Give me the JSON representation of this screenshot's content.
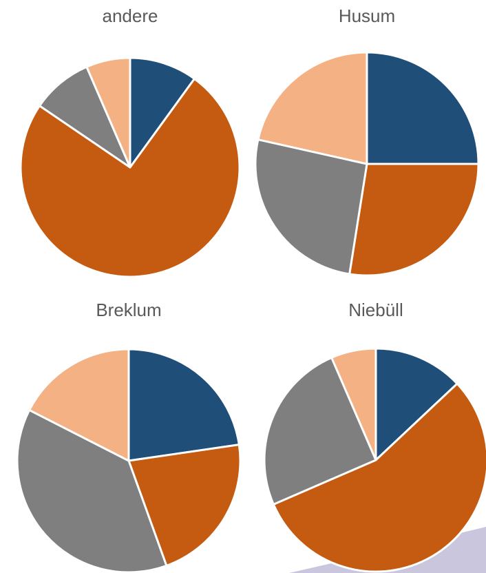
{
  "chart_data": [
    {
      "type": "pie",
      "title": "andere",
      "categories": [
        null,
        null,
        null,
        null
      ],
      "values": [
        10,
        74.5,
        9,
        6.5
      ],
      "colors": [
        "#1f4e79",
        "#c55a11",
        "#7f7f7f",
        "#f4b183"
      ]
    },
    {
      "type": "pie",
      "title": "Husum",
      "categories": [
        null,
        null,
        null,
        null
      ],
      "values": [
        25,
        27.5,
        26,
        21.5
      ],
      "colors": [
        "#1f4e79",
        "#c55a11",
        "#7f7f7f",
        "#f4b183"
      ]
    },
    {
      "type": "pie",
      "title": "Breklum",
      "categories": [
        null,
        null,
        null,
        null
      ],
      "values": [
        22.7,
        21.8,
        38,
        17.5
      ],
      "colors": [
        "#1f4e79",
        "#c55a11",
        "#7f7f7f",
        "#f4b183"
      ]
    },
    {
      "type": "pie",
      "title": "Niebüll",
      "categories": [
        null,
        null,
        null,
        null
      ],
      "values": [
        13,
        55.5,
        25,
        6.5
      ],
      "colors": [
        "#1f4e79",
        "#c55a11",
        "#7f7f7f",
        "#f4b183"
      ]
    }
  ]
}
